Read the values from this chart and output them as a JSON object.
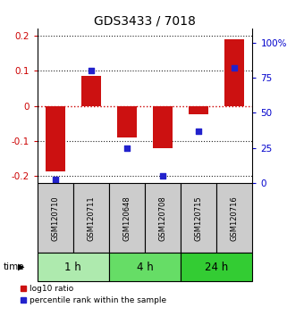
{
  "title": "GDS3433 / 7018",
  "samples": [
    "GSM120710",
    "GSM120711",
    "GSM120648",
    "GSM120708",
    "GSM120715",
    "GSM120716"
  ],
  "log10_ratio": [
    -0.185,
    0.085,
    -0.09,
    -0.12,
    -0.025,
    0.19
  ],
  "percentile_rank": [
    3,
    80,
    25,
    5,
    37,
    82
  ],
  "ylim_left": [
    -0.22,
    0.22
  ],
  "ylim_right": [
    0,
    110
  ],
  "yticks_left": [
    -0.2,
    -0.1,
    0,
    0.1,
    0.2
  ],
  "yticks_right": [
    0,
    25,
    50,
    75,
    100
  ],
  "yticklabels_right": [
    "0",
    "25",
    "50",
    "75",
    "100%"
  ],
  "time_groups": [
    {
      "label": "1 h",
      "start": 0,
      "end": 2,
      "color": "#aeeaae"
    },
    {
      "label": "4 h",
      "start": 2,
      "end": 4,
      "color": "#66dd66"
    },
    {
      "label": "24 h",
      "start": 4,
      "end": 6,
      "color": "#33cc33"
    }
  ],
  "bar_color": "#cc1111",
  "marker_color": "#2222cc",
  "zero_line_color": "#cc0000",
  "grid_color": "#222222",
  "sample_box_color": "#cccccc",
  "title_color": "#000000",
  "left_axis_color": "#cc0000",
  "right_axis_color": "#0000cc",
  "bar_width": 0.55
}
